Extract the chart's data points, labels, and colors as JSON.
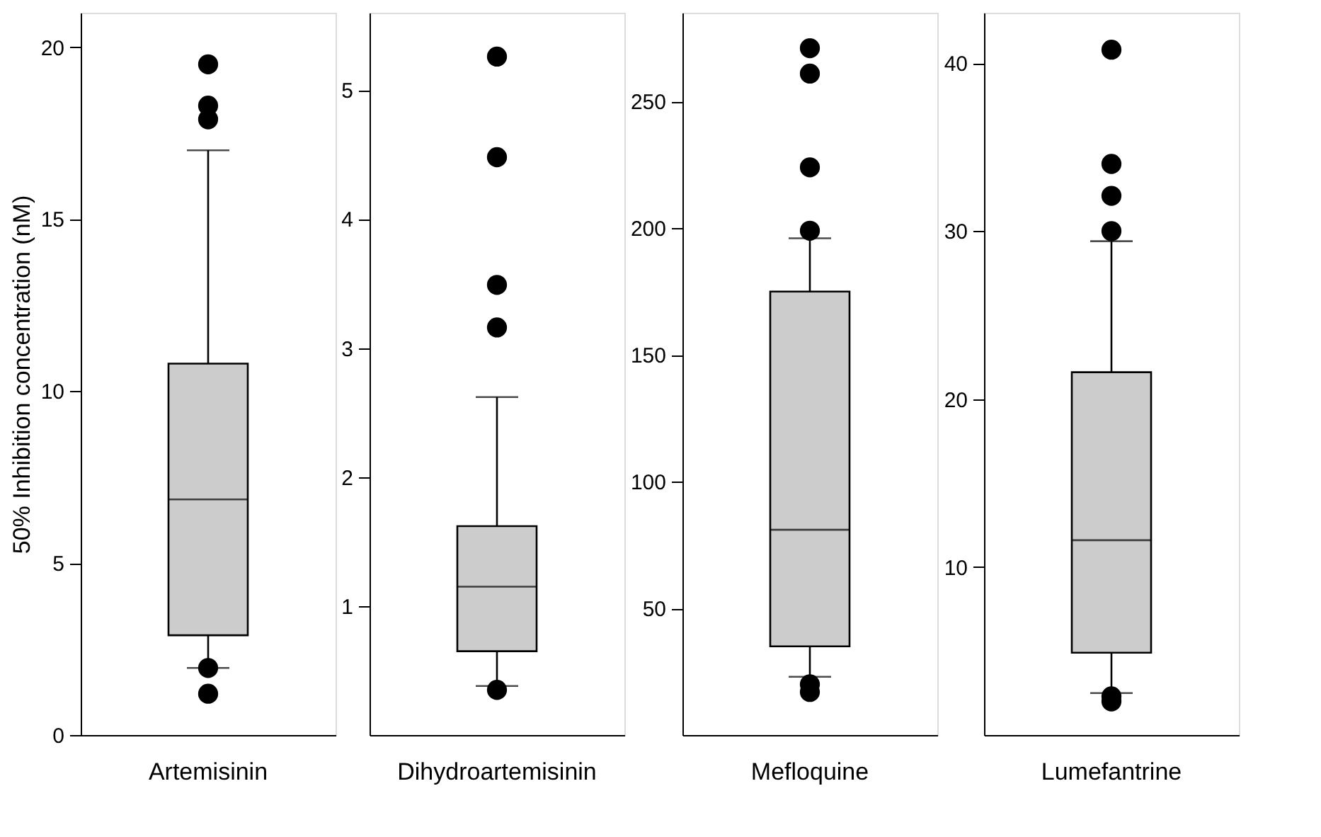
{
  "chart_data": [
    {
      "type": "box",
      "ylabel": "50% Inhibition concentration (nM)",
      "categories": [
        "Artemisinin"
      ],
      "ylim": [
        0,
        21
      ],
      "yticks": [
        0,
        5,
        10,
        15,
        20
      ],
      "grid": false,
      "color": "#cccccc",
      "boxes": [
        {
          "low": 1.95,
          "q1": 2.9,
          "median": 6.85,
          "q3": 10.8,
          "high": 17.0,
          "outliers": [
            19.5,
            18.3,
            17.9,
            1.95,
            1.2
          ]
        }
      ]
    },
    {
      "type": "box",
      "categories": [
        "Dihydroartemisinin"
      ],
      "ylim": [
        0,
        5.6
      ],
      "yticks": [
        1,
        2,
        3,
        4,
        5
      ],
      "grid": false,
      "color": "#cccccc",
      "boxes": [
        {
          "low": 0.38,
          "q1": 0.65,
          "median": 1.15,
          "q3": 1.62,
          "high": 2.62,
          "outliers": [
            5.26,
            4.48,
            3.49,
            3.16,
            0.35
          ]
        }
      ]
    },
    {
      "type": "box",
      "categories": [
        "Mefloquine"
      ],
      "ylim": [
        0,
        285
      ],
      "yticks": [
        50,
        100,
        150,
        200,
        250
      ],
      "grid": false,
      "color": "#cccccc",
      "boxes": [
        {
          "low": 23,
          "q1": 35,
          "median": 81,
          "q3": 175,
          "high": 196,
          "outliers": [
            271,
            261,
            224,
            199,
            20,
            17
          ]
        }
      ]
    },
    {
      "type": "box",
      "categories": [
        "Lumefantrine"
      ],
      "ylim": [
        0,
        43
      ],
      "yticks": [
        10,
        20,
        30,
        40
      ],
      "grid": false,
      "color": "#cccccc",
      "boxes": [
        {
          "low": 2.5,
          "q1": 4.9,
          "median": 11.6,
          "q3": 21.6,
          "high": 29.4,
          "outliers": [
            40.8,
            34.0,
            32.1,
            30.0,
            2.3,
            2.0
          ]
        }
      ]
    }
  ]
}
